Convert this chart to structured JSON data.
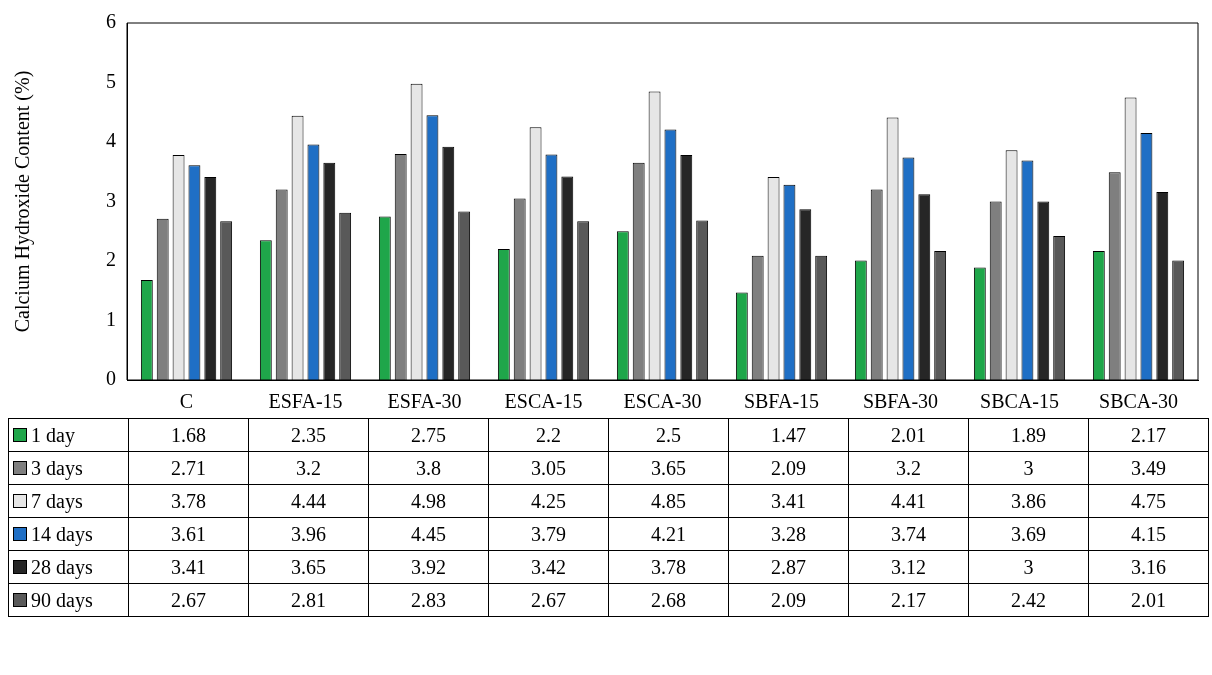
{
  "chart_data": {
    "type": "bar",
    "ylabel": "Calcium Hydroxide Content (%)",
    "categories": [
      "C",
      "ESFA-15",
      "ESFA-30",
      "ESCA-15",
      "ESCA-30",
      "SBFA-15",
      "SBFA-30",
      "SBCA-15",
      "SBCA-30"
    ],
    "series": [
      {
        "name": "1 day",
        "color": "#1fa64a",
        "values": [
          1.68,
          2.35,
          2.75,
          2.2,
          2.5,
          1.47,
          2.01,
          1.89,
          2.17
        ]
      },
      {
        "name": "3 days",
        "color": "#7f7f7f",
        "values": [
          2.71,
          3.2,
          3.8,
          3.05,
          3.65,
          2.09,
          3.2,
          3,
          3.49
        ]
      },
      {
        "name": "7 days",
        "color": "#e6e6e6",
        "values": [
          3.78,
          4.44,
          4.98,
          4.25,
          4.85,
          3.41,
          4.41,
          3.86,
          4.75
        ]
      },
      {
        "name": "14 days",
        "color": "#1f6fc5",
        "values": [
          3.61,
          3.96,
          4.45,
          3.79,
          4.21,
          3.28,
          3.74,
          3.69,
          4.15
        ]
      },
      {
        "name": "28 days",
        "color": "#262626",
        "values": [
          3.41,
          3.65,
          3.92,
          3.42,
          3.78,
          2.87,
          3.12,
          3,
          3.16
        ]
      },
      {
        "name": "90 days",
        "color": "#595959",
        "values": [
          2.67,
          2.81,
          2.83,
          2.67,
          2.68,
          2.09,
          2.17,
          2.42,
          2.01
        ]
      }
    ],
    "ylim": [
      0,
      6
    ],
    "yticks": [
      0,
      1,
      2,
      3,
      4,
      5,
      6
    ],
    "grid": false,
    "data_labels": true,
    "legend": "bottom"
  }
}
